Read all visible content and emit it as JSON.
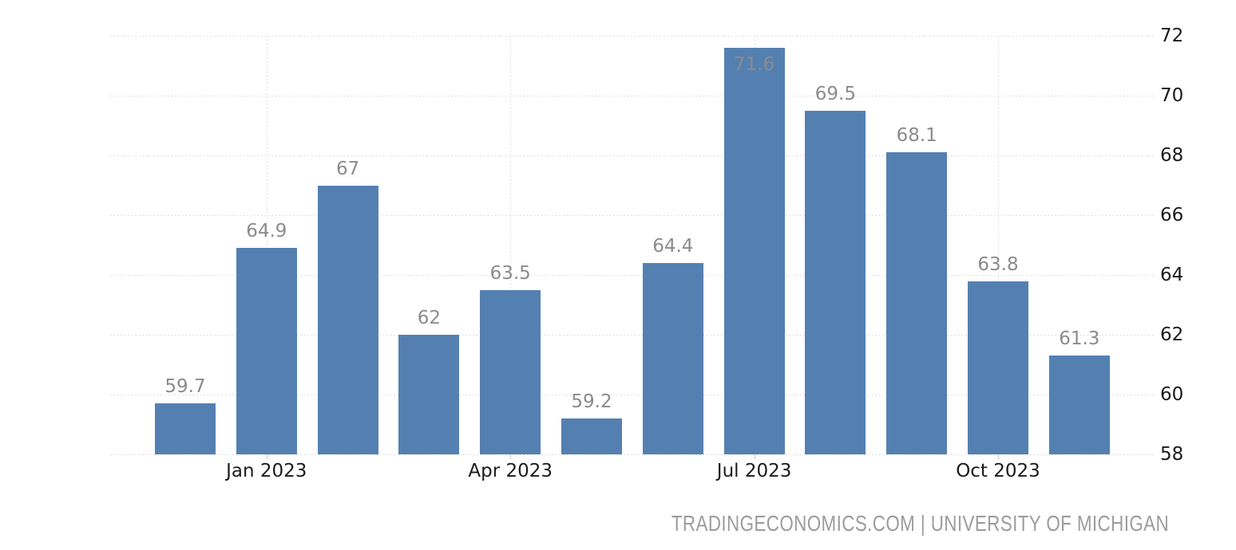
{
  "chart_data": {
    "type": "bar",
    "title": "",
    "values": [
      59.7,
      64.9,
      67,
      62,
      63.5,
      59.2,
      64.4,
      71.6,
      69.5,
      68.1,
      63.8,
      61.3
    ],
    "bar_labels": [
      "59.7",
      "64.9",
      "67",
      "62",
      "63.5",
      "59.2",
      "64.4",
      "71.6",
      "69.5",
      "68.1",
      "63.8",
      "61.3"
    ],
    "x_tick_labels": [
      "Jan 2023",
      "Apr 2023",
      "Jul 2023",
      "Oct 2023"
    ],
    "x_tick_bar_indices": [
      1,
      4,
      7,
      10
    ],
    "y_ticks": [
      58,
      60,
      62,
      64,
      66,
      68,
      70,
      72
    ],
    "y_tick_labels": [
      "58",
      "60",
      "62",
      "64",
      "66",
      "68",
      "70",
      "72"
    ],
    "ylim": [
      58,
      72
    ],
    "y_axis_side": "right",
    "grid": "dotted",
    "legend": "none",
    "bar_count": 12
  },
  "colors": {
    "background": "#ffffff",
    "bar": "#5480b1",
    "data_label": "#8b8b8b",
    "axis_text": "#1b1b1b",
    "grid_line": "#d6d6d6",
    "tick_mark": "#c9c9c9",
    "footer_text": "#9c9c9c"
  },
  "footer": {
    "credit": "TRADINGECONOMICS.COM | UNIVERSITY OF MICHIGAN"
  }
}
